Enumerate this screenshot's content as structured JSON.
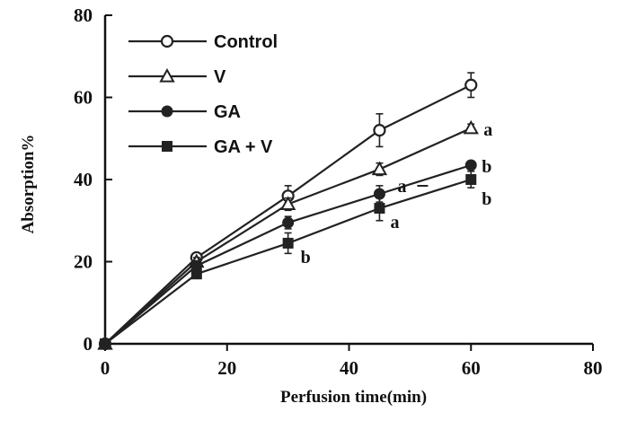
{
  "chart_data": {
    "type": "line",
    "title": "",
    "xlabel": "Perfusion time(min)",
    "ylabel": "Absorption%",
    "xlim": [
      0,
      80
    ],
    "ylim": [
      0,
      80
    ],
    "xticks": [
      0,
      20,
      40,
      60,
      80
    ],
    "yticks": [
      0,
      20,
      40,
      60,
      80
    ],
    "grid": false,
    "legend_position": "top-left",
    "x": [
      0,
      15,
      30,
      45,
      60
    ],
    "series": [
      {
        "name": "Control",
        "marker": "open-circle",
        "values": [
          0,
          21,
          36,
          52,
          63
        ],
        "errors": [
          0,
          1,
          2.5,
          4,
          3
        ]
      },
      {
        "name": "V",
        "marker": "open-triangle",
        "values": [
          0,
          20,
          34,
          42.5,
          52.5
        ],
        "errors": [
          0,
          1,
          1.5,
          1.5,
          1
        ]
      },
      {
        "name": "GA",
        "marker": "filled-circle",
        "values": [
          0,
          19,
          29.5,
          36.5,
          43.5
        ],
        "errors": [
          0,
          1,
          1.5,
          2,
          1
        ]
      },
      {
        "name": "GA + V",
        "marker": "filled-square",
        "values": [
          0,
          17,
          24.5,
          33,
          40
        ],
        "errors": [
          0,
          1,
          2.5,
          3,
          2
        ]
      }
    ],
    "annotations": [
      {
        "text": "a",
        "series": "V",
        "x": 60
      },
      {
        "text": "b",
        "series": "GA",
        "x": 60
      },
      {
        "text": "b",
        "series": "GA + V",
        "x": 60
      },
      {
        "text": "a",
        "series": "GA",
        "x": 45
      },
      {
        "text": "a",
        "series": "GA + V",
        "x": 45
      },
      {
        "text": "b",
        "series": "GA + V",
        "x": 30
      }
    ]
  }
}
